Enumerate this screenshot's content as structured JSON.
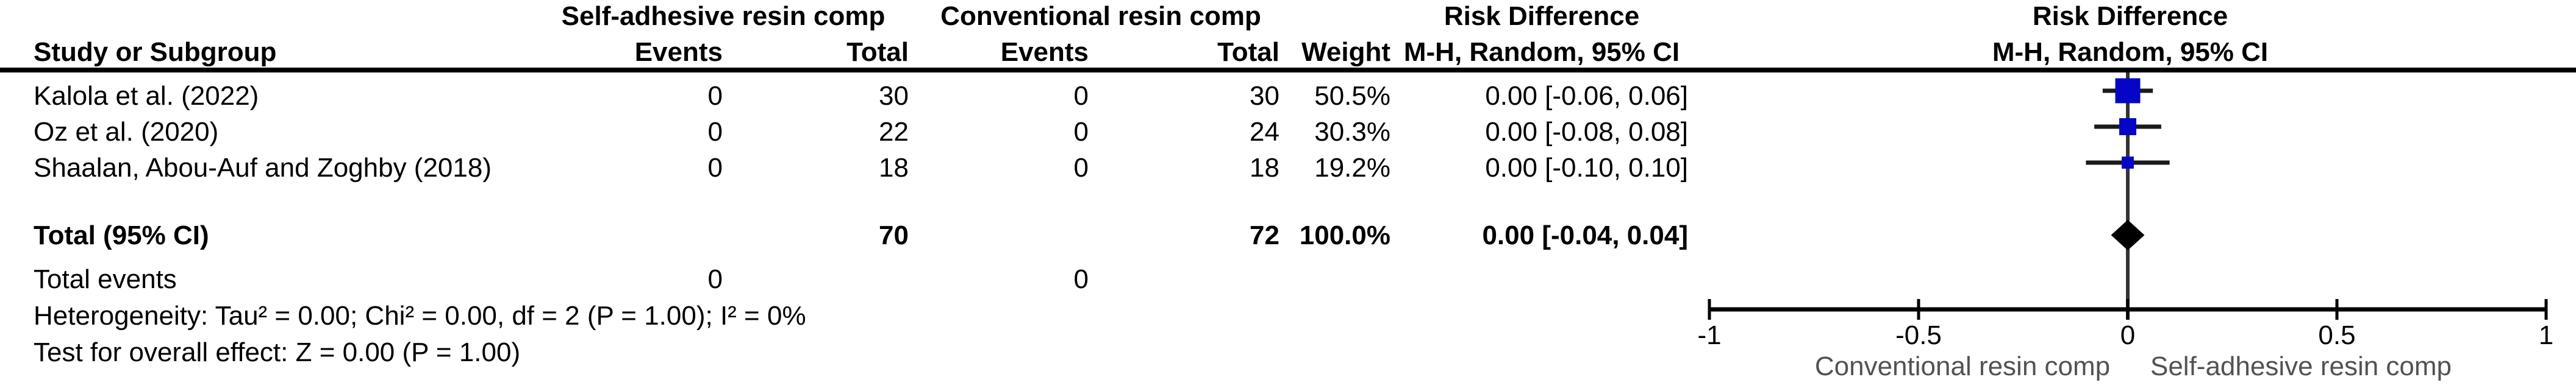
{
  "table": {
    "group1_label": "Self-adhesive resin comp",
    "group2_label": "Conventional resin comp",
    "stat_header_line1": "Risk Difference",
    "stat_header_line2": "M-H, Random, 95% CI",
    "plot_header_line1": "Risk Difference",
    "plot_header_line2": "M-H, Random, 95% CI",
    "study_col_header": "Study or Subgroup",
    "events_header_1": "Events",
    "total_header_1": "Total",
    "events_header_2": "Events",
    "total_header_2": "Total",
    "weight_header": "Weight",
    "rows": [
      {
        "study": "Kalola et al. (2022)",
        "events1": "0",
        "total1": "30",
        "events2": "0",
        "total2": "30",
        "weight": "50.5%",
        "ci_text": "0.00 [-0.06, 0.06]"
      },
      {
        "study": "Oz et al. (2020)",
        "events1": "0",
        "total1": "22",
        "events2": "0",
        "total2": "24",
        "weight": "30.3%",
        "ci_text": "0.00 [-0.08, 0.08]"
      },
      {
        "study": "Shaalan, Abou-Auf and Zoghby (2018)",
        "events1": "0",
        "total1": "18",
        "events2": "0",
        "total2": "18",
        "weight": "19.2%",
        "ci_text": "0.00 [-0.10, 0.10]"
      }
    ],
    "total_row": {
      "label": "Total (95% CI)",
      "total1": "70",
      "total2": "72",
      "weight": "100.0%",
      "ci_text": "0.00 [-0.04, 0.04]"
    },
    "total_events_row": {
      "label": "Total events",
      "events1": "0",
      "events2": "0"
    },
    "heterogeneity_text": "Heterogeneity: Tau² = 0.00; Chi² = 0.00, df = 2 (P = 1.00); I² = 0%",
    "overall_effect_text": "Test for overall effect: Z = 0.00 (P = 1.00)"
  },
  "chart_data": {
    "type": "forest",
    "effect_measure": "Risk Difference",
    "method": "M-H, Random, 95% CI",
    "studies": [
      {
        "name": "Kalola et al. (2022)",
        "rd": 0.0,
        "ci_low": -0.06,
        "ci_high": 0.06,
        "weight_pct": 50.5
      },
      {
        "name": "Oz et al. (2020)",
        "rd": 0.0,
        "ci_low": -0.08,
        "ci_high": 0.08,
        "weight_pct": 30.3
      },
      {
        "name": "Shaalan, Abou-Auf and Zoghby (2018)",
        "rd": 0.0,
        "ci_low": -0.1,
        "ci_high": 0.1,
        "weight_pct": 19.2
      }
    ],
    "total": {
      "label": "Total (95% CI)",
      "rd": 0.0,
      "ci_low": -0.04,
      "ci_high": 0.04,
      "weight_pct": 100.0
    },
    "axis": {
      "min": -1,
      "max": 1,
      "ticks": [
        -1,
        -0.5,
        0,
        0.5,
        1
      ],
      "tick_labels": [
        "-1",
        "-0.5",
        "0",
        "0.5",
        "1"
      ]
    },
    "favours_left": "Conventional resin comp",
    "favours_right": "Self-adhesive resin comp",
    "marker_color": "#0505c8",
    "diamond_color": "#000000",
    "line_color": "#1a1a1a"
  }
}
